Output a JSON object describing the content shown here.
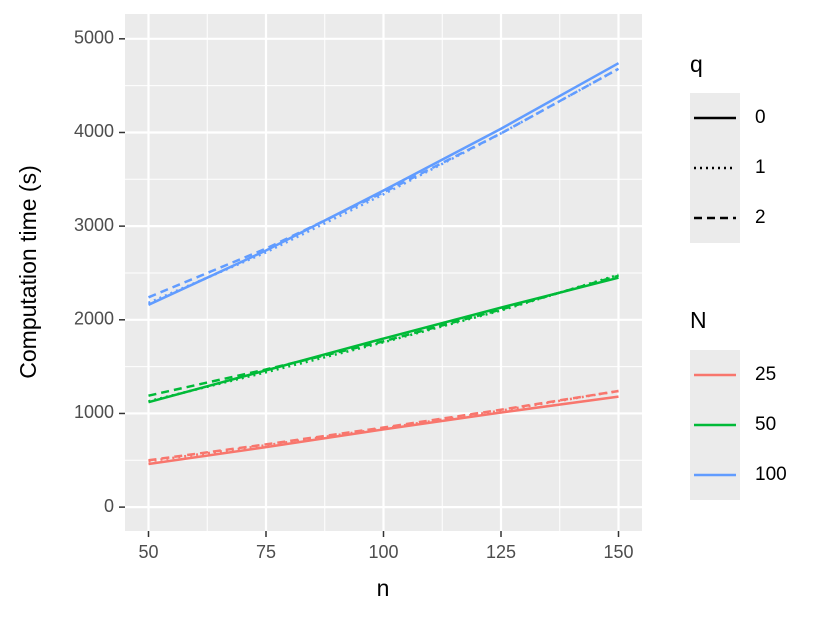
{
  "chart_data": {
    "type": "line",
    "x_label": "n",
    "y_label": "Computation time (s)",
    "x": [
      50,
      75,
      100,
      125,
      150
    ],
    "xlim": [
      45,
      155
    ],
    "xticks": [
      50,
      75,
      100,
      125,
      150
    ],
    "ylim": [
      -255,
      5265
    ],
    "yticks": [
      0,
      1000,
      2000,
      3000,
      4000,
      5000
    ],
    "grid": true,
    "legends": [
      {
        "title": "q",
        "labels": [
          "0",
          "1",
          "2"
        ],
        "dashes": [
          "solid",
          "dotted",
          "dashed"
        ]
      },
      {
        "title": "N",
        "labels": [
          "25",
          "50",
          "100"
        ],
        "colors": [
          "#f8766d",
          "#00ba38",
          "#619cff"
        ]
      }
    ],
    "series": [
      {
        "color": "#f8766d",
        "dash": "solid",
        "values": [
          460,
          640,
          830,
          1010,
          1180
        ]
      },
      {
        "color": "#f8766d",
        "dash": "dotted",
        "values": [
          490,
          660,
          840,
          1030,
          1240
        ]
      },
      {
        "color": "#f8766d",
        "dash": "dashed",
        "values": [
          500,
          670,
          850,
          1040,
          1240
        ]
      },
      {
        "color": "#00ba38",
        "dash": "solid",
        "values": [
          1120,
          1460,
          1800,
          2130,
          2450
        ]
      },
      {
        "color": "#00ba38",
        "dash": "dotted",
        "values": [
          1130,
          1440,
          1760,
          2100,
          2480
        ]
      },
      {
        "color": "#00ba38",
        "dash": "dashed",
        "values": [
          1190,
          1470,
          1770,
          2110,
          2470
        ]
      },
      {
        "color": "#619cff",
        "dash": "solid",
        "values": [
          2160,
          2740,
          3380,
          4040,
          4740
        ]
      },
      {
        "color": "#619cff",
        "dash": "dotted",
        "values": [
          2180,
          2720,
          3340,
          3990,
          4680
        ]
      },
      {
        "color": "#619cff",
        "dash": "dashed",
        "values": [
          2240,
          2760,
          3360,
          3990,
          4680
        ]
      }
    ]
  }
}
